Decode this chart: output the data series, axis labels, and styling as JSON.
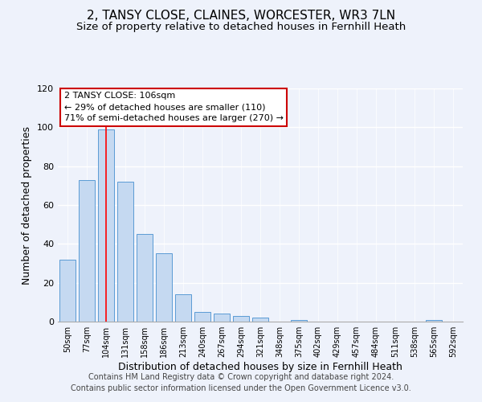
{
  "title": "2, TANSY CLOSE, CLAINES, WORCESTER, WR3 7LN",
  "subtitle": "Size of property relative to detached houses in Fernhill Heath",
  "xlabel": "Distribution of detached houses by size in Fernhill Heath",
  "ylabel": "Number of detached properties",
  "bar_labels": [
    "50sqm",
    "77sqm",
    "104sqm",
    "131sqm",
    "158sqm",
    "186sqm",
    "213sqm",
    "240sqm",
    "267sqm",
    "294sqm",
    "321sqm",
    "348sqm",
    "375sqm",
    "402sqm",
    "429sqm",
    "457sqm",
    "484sqm",
    "511sqm",
    "538sqm",
    "565sqm",
    "592sqm"
  ],
  "bar_heights": [
    32,
    73,
    99,
    72,
    45,
    35,
    14,
    5,
    4,
    3,
    2,
    0,
    1,
    0,
    0,
    0,
    0,
    0,
    0,
    1,
    0
  ],
  "bar_color": "#c5d9f1",
  "bar_edge_color": "#5b9bd5",
  "red_line_index": 2,
  "ylim": [
    0,
    120
  ],
  "yticks": [
    0,
    20,
    40,
    60,
    80,
    100,
    120
  ],
  "annotation_title": "2 TANSY CLOSE: 106sqm",
  "annotation_line1": "← 29% of detached houses are smaller (110)",
  "annotation_line2": "71% of semi-detached houses are larger (270) →",
  "annotation_box_color": "#ffffff",
  "annotation_box_edge_color": "#cc0000",
  "footer_line1": "Contains HM Land Registry data © Crown copyright and database right 2024.",
  "footer_line2": "Contains public sector information licensed under the Open Government Licence v3.0.",
  "title_fontsize": 11,
  "subtitle_fontsize": 9.5,
  "xlabel_fontsize": 9,
  "ylabel_fontsize": 9,
  "annotation_fontsize": 8,
  "footer_fontsize": 7,
  "background_color": "#eef2fb"
}
